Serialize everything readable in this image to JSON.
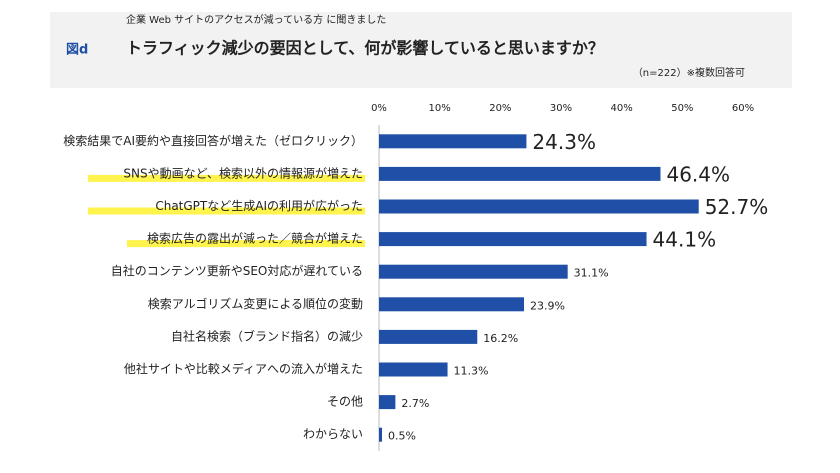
{
  "chart_data": {
    "type": "bar",
    "orientation": "horizontal",
    "figure_label": "図d",
    "subtitle": "企業 Web サイトのアクセスが減っている方 に聞きました",
    "title": "トラフィック減少の要因として、何が影響していると思いますか？",
    "note": "（n=222）※複数回答可",
    "categories": [
      "検索結果でAI要約や直接回答が増えた（ゼロクリック）",
      "SNSや動画など、検索以外の情報源が増えた",
      "ChatGPTなど生成AIの利用が広がった",
      "検索広告の露出が減った／競合が増えた",
      "自社のコンテンツ更新やSEO対応が遅れている",
      "検索アルゴリズム変更による順位の変動",
      "自社名検索（ブランド指名）の減少",
      "他社サイトや比較メディアへの流入が増えた",
      "その他",
      "わからない"
    ],
    "values": [
      24.3,
      46.4,
      52.7,
      44.1,
      31.1,
      23.9,
      16.2,
      11.3,
      2.7,
      0.5
    ],
    "value_labels": [
      "24.3%",
      "46.4%",
      "52.7%",
      "44.1%",
      "31.1%",
      "23.9%",
      "16.2%",
      "11.3%",
      "2.7%",
      "0.5%"
    ],
    "color": "#1f4fa6",
    "highlighted": [
      1,
      2,
      3
    ],
    "highlight_color": "#fff34d",
    "emphasized_labels": [
      0,
      1,
      2,
      3
    ],
    "xlim": [
      0,
      60
    ],
    "xticks": [
      {
        "value": 0,
        "label": "0%"
      },
      {
        "value": 10,
        "label": "10%"
      },
      {
        "value": 20,
        "label": "20%"
      },
      {
        "value": 30,
        "label": "30%"
      },
      {
        "value": 40,
        "label": "40%"
      },
      {
        "value": 50,
        "label": "50%"
      },
      {
        "value": 60,
        "label": "60%"
      }
    ]
  }
}
